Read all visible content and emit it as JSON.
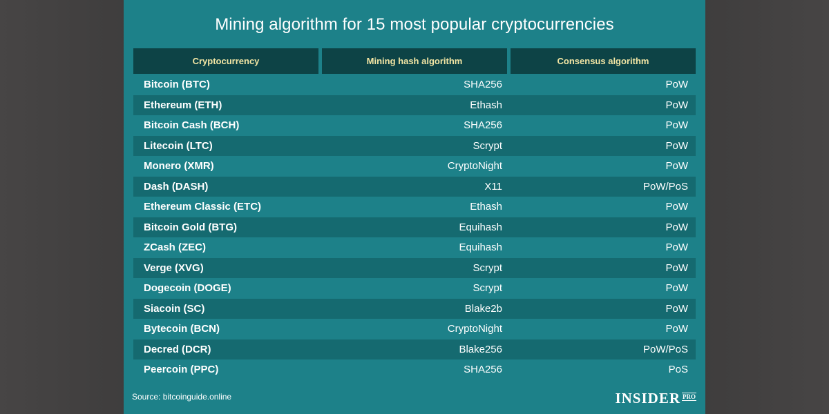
{
  "chart_data": {
    "type": "table",
    "title": "Mining algorithm for 15 most popular cryptocurrencies",
    "columns": [
      "Cryptocurrency",
      "Mining hash algorithm",
      "Consensus algorithm"
    ],
    "rows": [
      [
        "Bitcoin (BTC)",
        "SHA256",
        "PoW"
      ],
      [
        "Ethereum (ETH)",
        "Ethash",
        "PoW"
      ],
      [
        "Bitcoin Cash (BCH)",
        "SHA256",
        "PoW"
      ],
      [
        "Litecoin (LTC)",
        "Scrypt",
        "PoW"
      ],
      [
        "Monero (XMR)",
        "CryptoNight",
        "PoW"
      ],
      [
        "Dash (DASH)",
        "X11",
        "PoW/PoS"
      ],
      [
        "Ethereum Classic (ETC)",
        "Ethash",
        "PoW"
      ],
      [
        "Bitcoin Gold (BTG)",
        "Equihash",
        "PoW"
      ],
      [
        "ZCash (ZEC)",
        "Equihash",
        "PoW"
      ],
      [
        "Verge (XVG)",
        "Scrypt",
        "PoW"
      ],
      [
        "Dogecoin (DOGE)",
        "Scrypt",
        "PoW"
      ],
      [
        "Siacoin (SC)",
        "Blake2b",
        "PoW"
      ],
      [
        "Bytecoin (BCN)",
        "CryptoNight",
        "PoW"
      ],
      [
        "Decred (DCR)",
        "Blake256",
        "PoW/PoS"
      ],
      [
        "Peercoin (PPC)",
        "SHA256",
        "PoS"
      ]
    ],
    "source": "Source: bitcoinguide.online"
  },
  "branding": {
    "logo_word": "INSIDER",
    "logo_badge": "PRO"
  },
  "colors": {
    "card_bg": "#1d8189",
    "row_dark": "#156a70",
    "header_bg": "#0d4346",
    "header_text": "#f3e6a4"
  }
}
